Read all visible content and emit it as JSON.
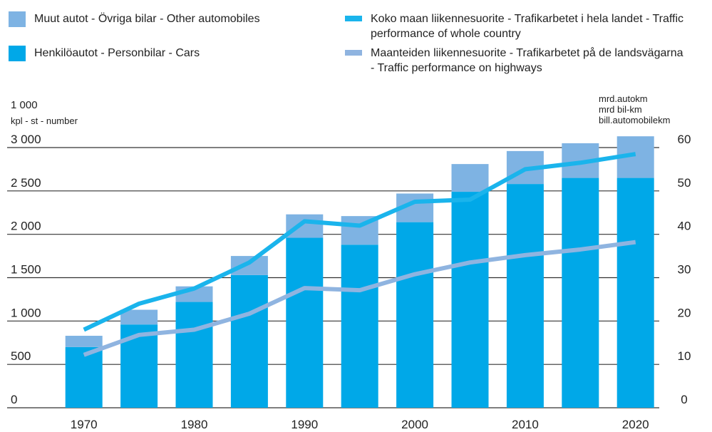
{
  "chart_data": {
    "type": "bar",
    "stacked": true,
    "categories": [
      "1970",
      null,
      "1980",
      null,
      "1990",
      null,
      "2000",
      null,
      "2010",
      null,
      "2020"
    ],
    "series": [
      {
        "name": "Henkilöautot - Personbilar - Cars",
        "color": "#00a8e8",
        "values": [
          700,
          960,
          1220,
          1530,
          1960,
          1880,
          2140,
          2490,
          2580,
          2650,
          2650
        ]
      },
      {
        "name": "Muut autot - Övriga bilar - Other automobiles",
        "color": "#7eb3e3",
        "values": [
          130,
          170,
          180,
          220,
          270,
          330,
          330,
          320,
          380,
          400,
          480
        ]
      },
      {
        "name": "Koko maan liikennesuorite - Trafikarbetet i hela landet - Traffic performance of whole country",
        "type": "line",
        "axis": "y2",
        "color": "#1ab4ec",
        "values": [
          18,
          24,
          27.5,
          33.5,
          43,
          42,
          47.5,
          48,
          55,
          56.5,
          58.5
        ]
      },
      {
        "name": "Maanteiden liikennesuorite - Trafikarbetet på de landsvägarna - Traffic performance on highways",
        "type": "line",
        "axis": "y2",
        "color": "#8fb4e0",
        "values": [
          12.2,
          16.8,
          18,
          21.7,
          27.6,
          27.1,
          30.8,
          33.5,
          35.2,
          36.5,
          38.2
        ]
      }
    ],
    "ylabel": [
      "1 000",
      "kpl - st - number"
    ],
    "y2label": [
      "mrd.autokm",
      "mrd bil-km",
      "bill.automobilekm"
    ],
    "ylim": [
      0,
      3000
    ],
    "yticks": [
      0,
      500,
      {
        "value": 1000,
        "label": "1 000"
      },
      {
        "value": 1500,
        "label": "1 500"
      },
      {
        "value": 2000,
        "label": "2 000"
      },
      {
        "value": 2500,
        "label": "2 500"
      },
      {
        "value": 3000,
        "label": "3 000"
      }
    ],
    "y2lim": [
      0,
      60
    ],
    "y2ticks": [
      0,
      10,
      20,
      30,
      40,
      50,
      60
    ],
    "grid": true
  }
}
